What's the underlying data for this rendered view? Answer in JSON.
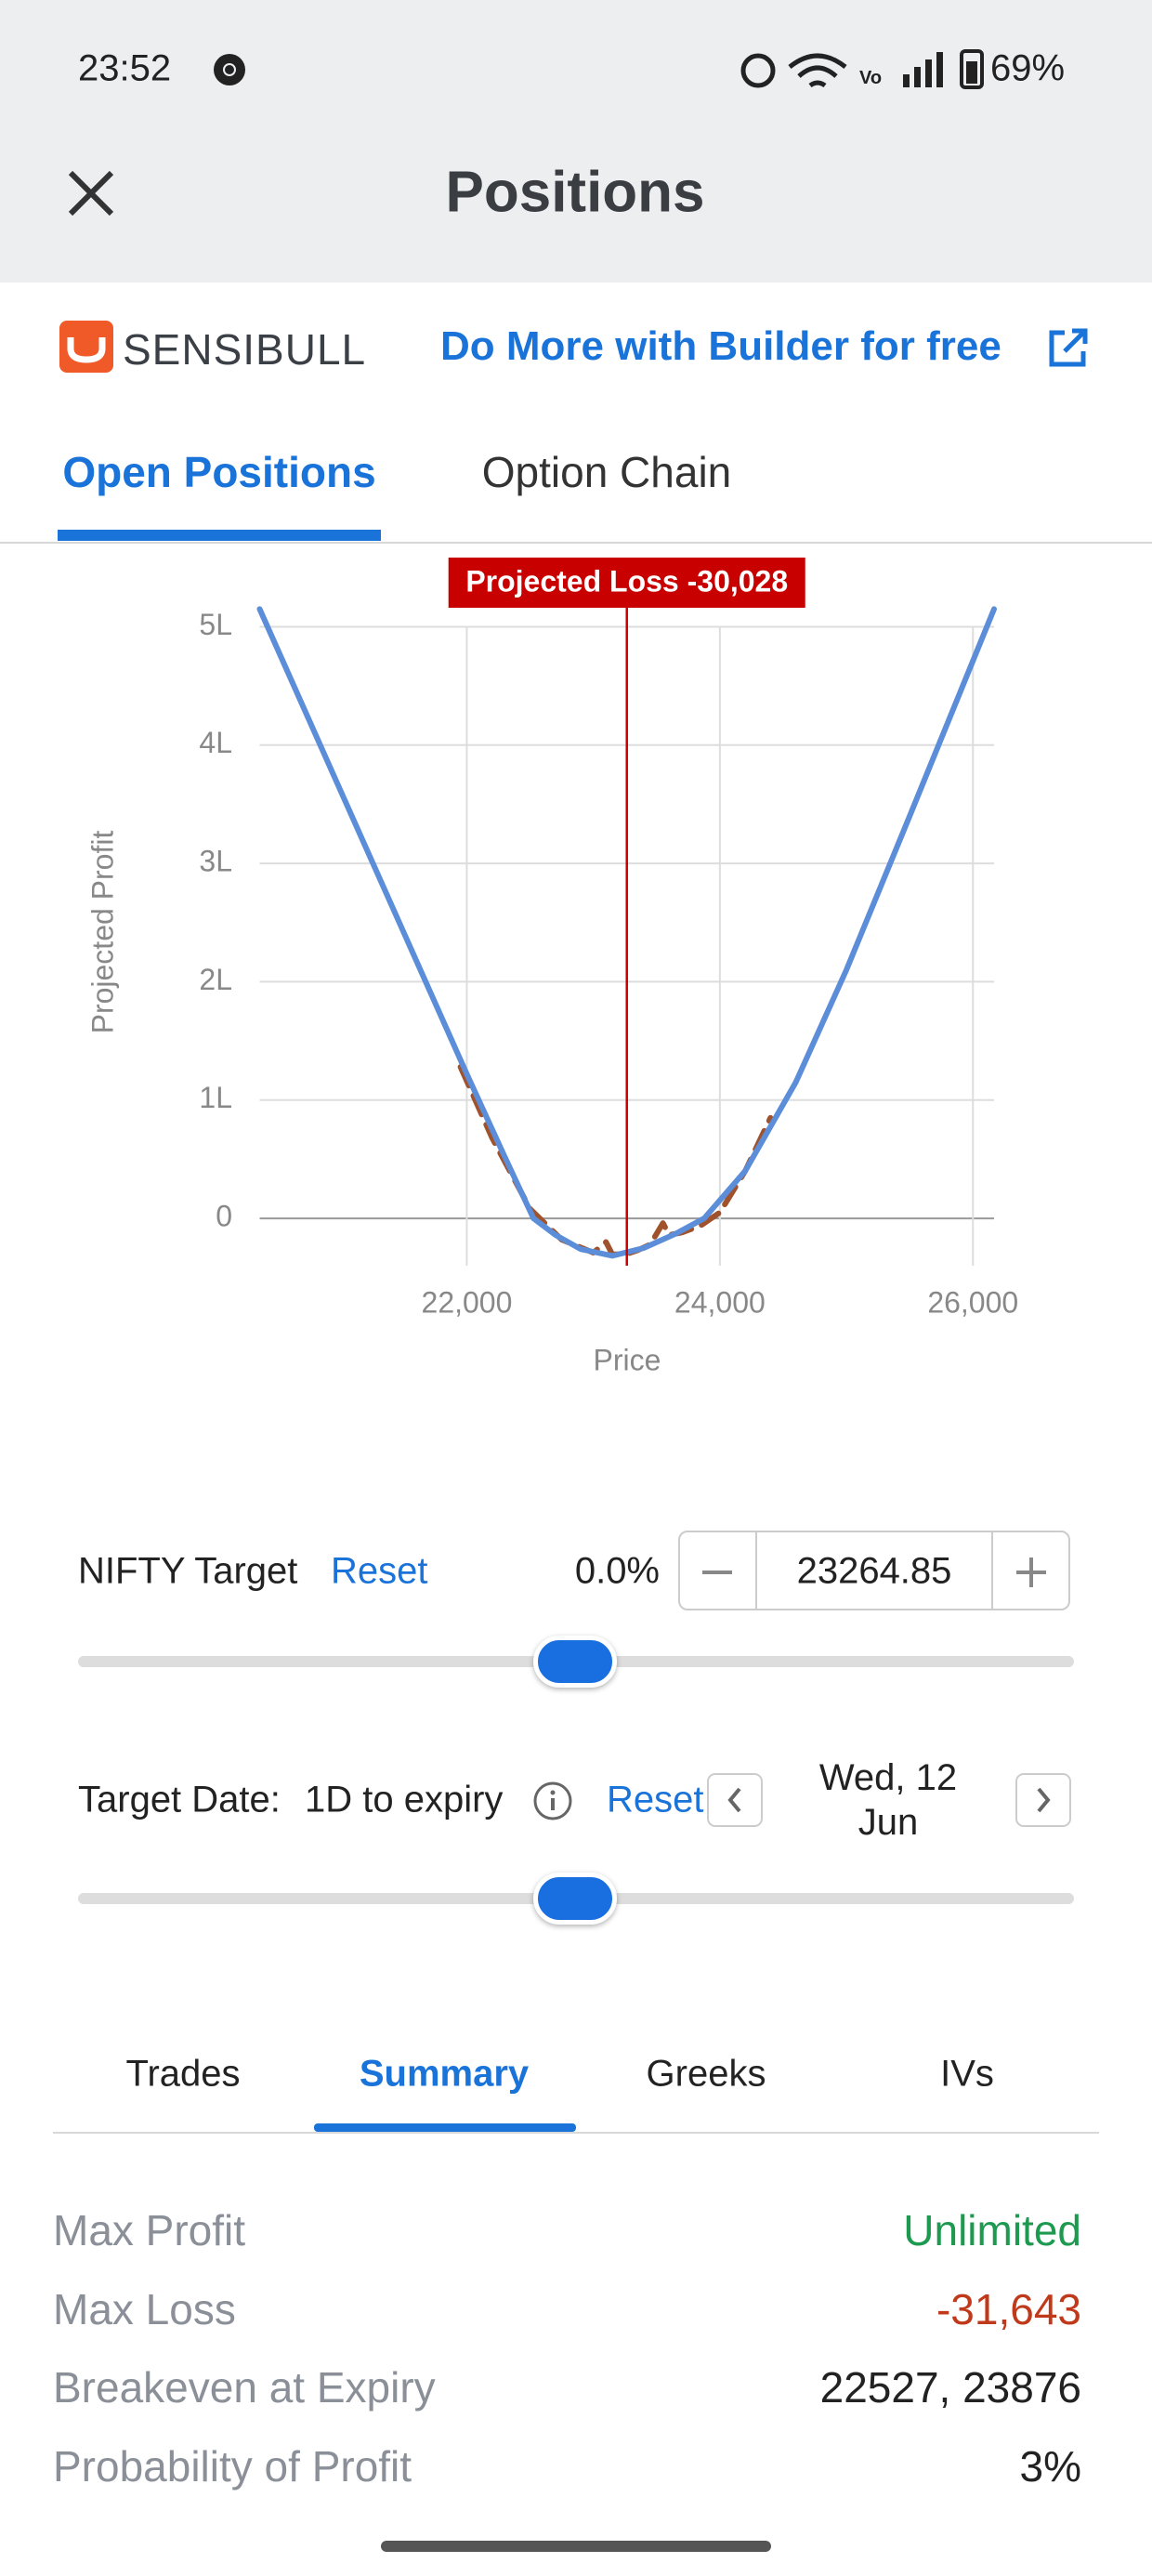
{
  "status_bar": {
    "time": "23:52",
    "battery": "69%"
  },
  "header": {
    "title": "Positions"
  },
  "brand": {
    "logo": "SENSIBULL",
    "promo": "Do More with Builder for free"
  },
  "tabs": [
    "Open Positions",
    "Option Chain"
  ],
  "chart_data": {
    "type": "line",
    "ylabel": "Projected Profit",
    "xlabel": "Price",
    "annotation": {
      "label": "Projected Loss -30,028",
      "x": 23264.85,
      "y": -30028,
      "color": "#c80000"
    },
    "xlim": [
      20363,
      26167
    ],
    "ylim": [
      -40000,
      520000
    ],
    "xticks": [
      {
        "value": 22000,
        "label": "22,000"
      },
      {
        "value": 24000,
        "label": "24,000"
      },
      {
        "value": 26000,
        "label": "26,000"
      }
    ],
    "yticks": [
      0,
      {
        "value": 100000,
        "label": "1L"
      },
      {
        "value": 200000,
        "label": "2L"
      },
      {
        "value": 300000,
        "label": "3L"
      },
      {
        "value": 400000,
        "label": "4L"
      },
      {
        "value": 500000,
        "label": "5L"
      }
    ],
    "grid": true,
    "series": [
      {
        "color": "#a0522d",
        "dashed": true,
        "x": [
          21950,
          22200,
          22500,
          22750,
          23000,
          23100,
          23150,
          23264.85,
          23350,
          23450,
          23550,
          23600,
          23700,
          23850,
          24000,
          24200,
          24400
        ],
        "values": [
          128000,
          68000,
          8000,
          -18000,
          -29000,
          -20000,
          -30500,
          -30028,
          -27000,
          -22000,
          -4000,
          -14000,
          -12000,
          -6000,
          5000,
          40000,
          85000
        ]
      },
      {
        "color": "#5b8dd9",
        "dashed": false,
        "x": [
          20363,
          21000,
          21500,
          22000,
          22300,
          22527,
          22700,
          22900,
          23150,
          23400,
          23650,
          23876,
          24200,
          24600,
          25000,
          25500,
          26167
        ],
        "values": [
          515000,
          362000,
          242000,
          122000,
          52000,
          0,
          -14000,
          -26000,
          -31643,
          -25000,
          -13000,
          0,
          40000,
          115000,
          210000,
          340000,
          515000
        ]
      }
    ]
  },
  "nifty_target": {
    "label": "NIFTY Target",
    "reset": "Reset",
    "change": "0.0%",
    "value": "23264.85"
  },
  "target_date": {
    "label": "Target Date:",
    "days": "1D to expiry",
    "reset": "Reset",
    "date": "Wed, 12 Jun"
  },
  "bottom_tabs": [
    "Trades",
    "Summary",
    "Greeks",
    "IVs"
  ],
  "summary": [
    {
      "label": "Max Profit",
      "value": "Unlimited"
    },
    {
      "label": "Max Loss",
      "value": "-31,643"
    },
    {
      "label": "Breakeven at Expiry",
      "value": "22527, 23876"
    },
    {
      "label": "Probability of Profit",
      "value": "3%"
    }
  ]
}
